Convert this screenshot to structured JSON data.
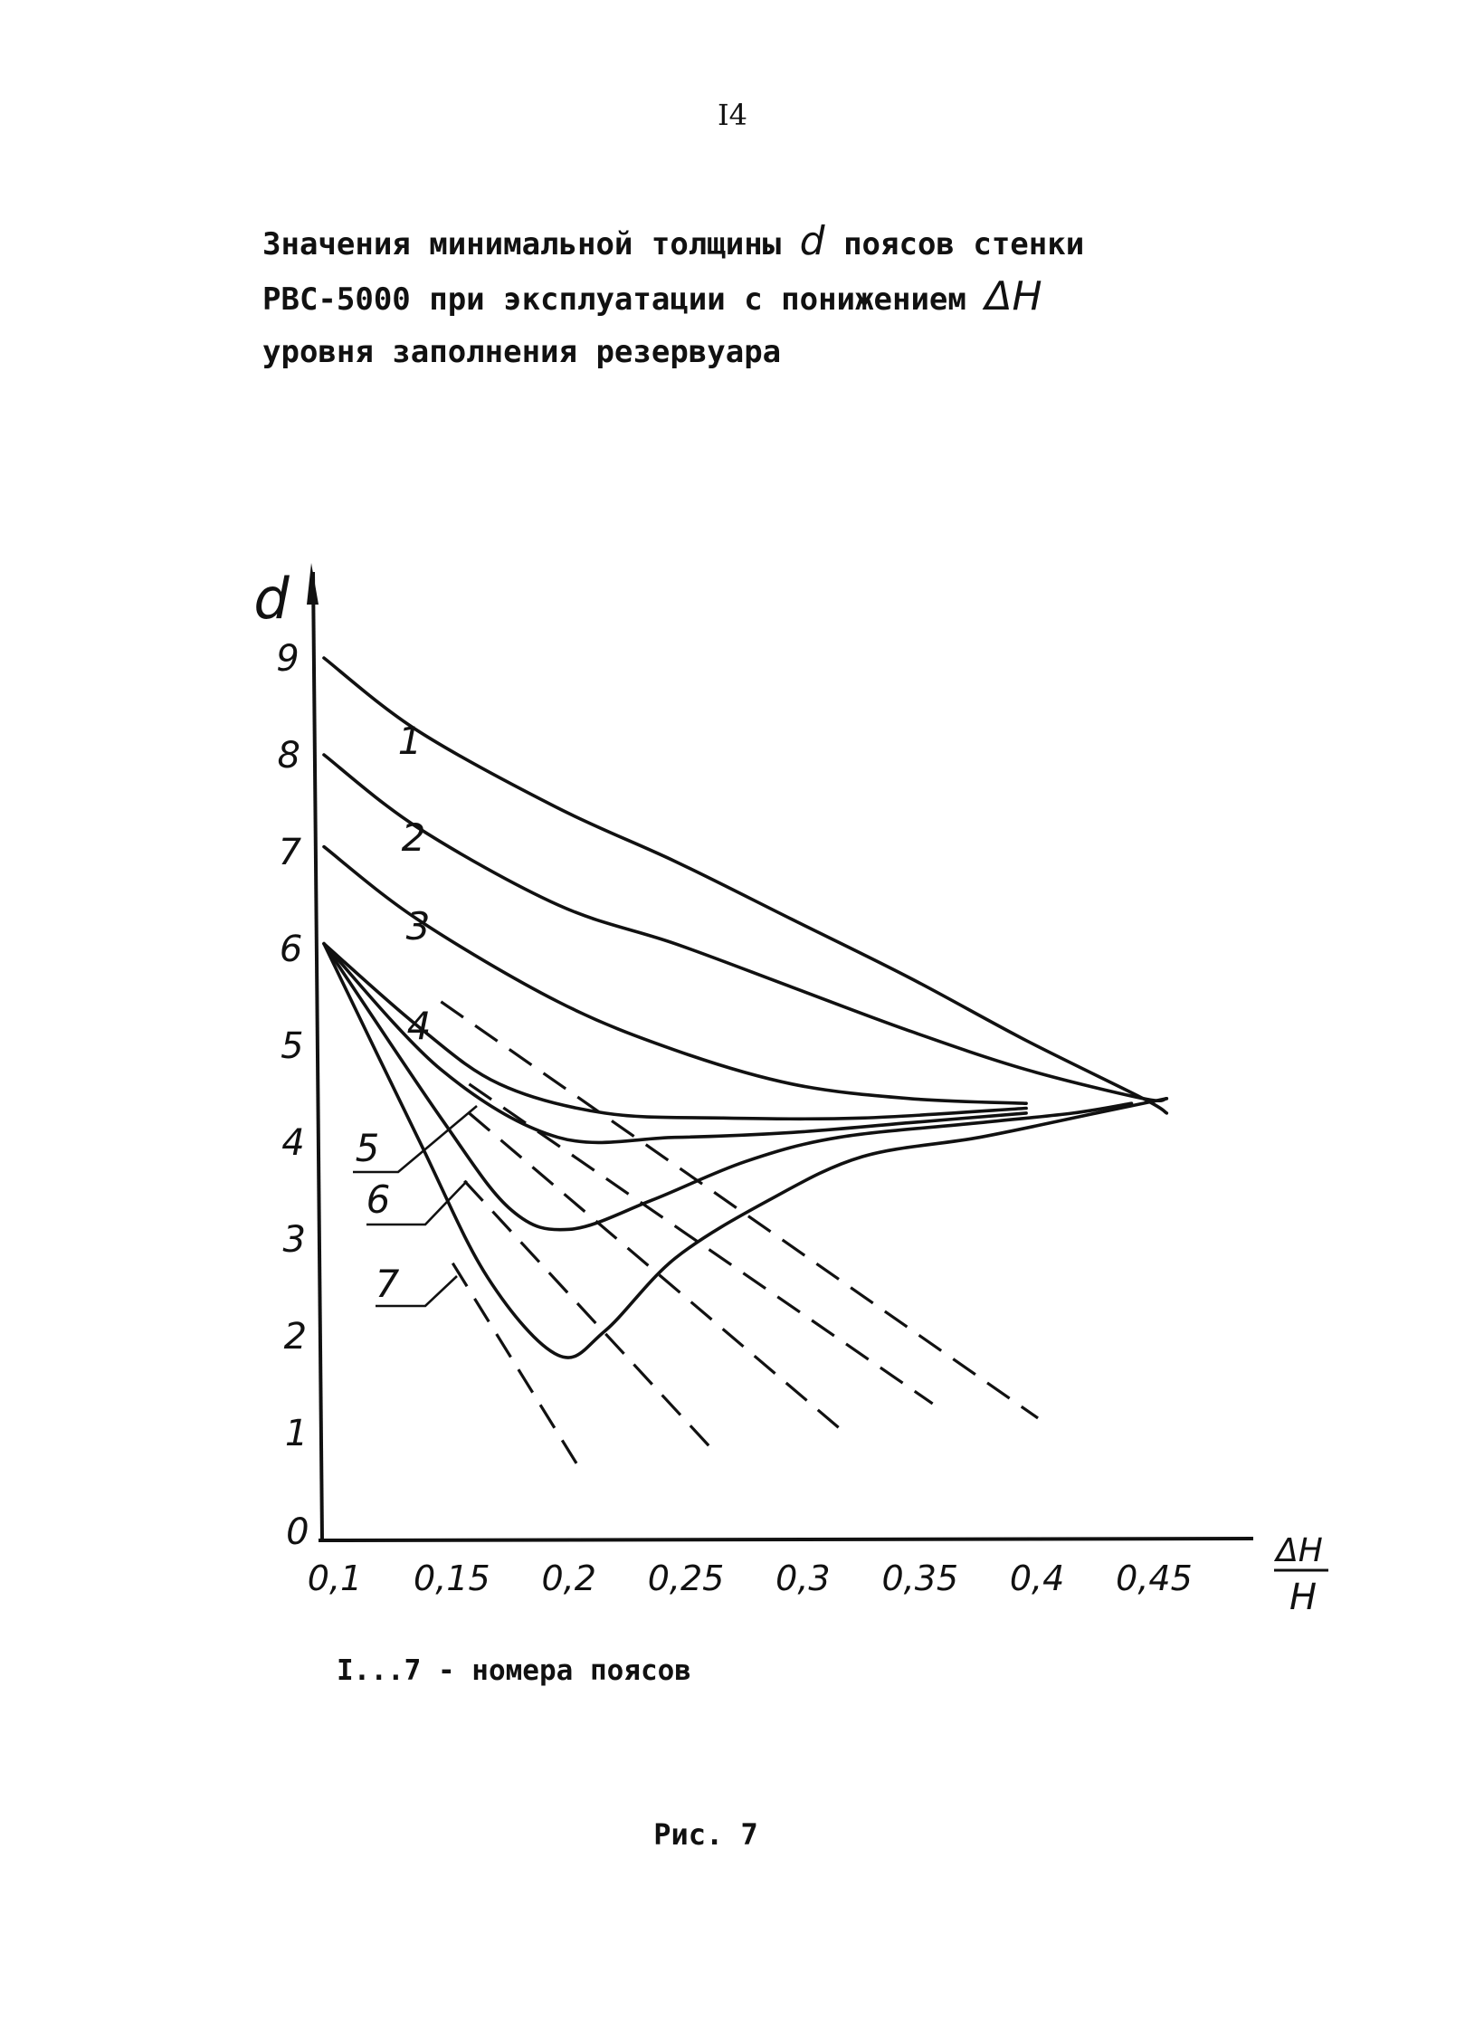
{
  "page_number": "I4",
  "caption": {
    "line1_a": "Значения минимальной толщины",
    "line1_sym": "d",
    "line1_b": "поясов стенки",
    "line2_a": "РВС-5000 при эксплуатации с понижением",
    "line2_sym": "ΔH",
    "line3": "уровня заполнения резервуара"
  },
  "chart_data": {
    "type": "line",
    "title": "",
    "ylabel": "d",
    "xlabel": "ΔH/H",
    "xlabel_num": "ΔH",
    "xlabel_den": "H",
    "xlim": [
      0.1,
      0.48
    ],
    "ylim": [
      0,
      10
    ],
    "x_ticks": [
      0.1,
      0.15,
      0.2,
      0.25,
      0.3,
      0.35,
      0.4,
      0.45
    ],
    "x_tick_labels": [
      "0,1",
      "0,15",
      "0,2",
      "0,25",
      "0,3",
      "0,35",
      "0,4",
      "0,45"
    ],
    "y_ticks": [
      0,
      1,
      2,
      3,
      4,
      5,
      6,
      7,
      8,
      9
    ],
    "y_tick_labels": [
      "0",
      "1",
      "2",
      "3",
      "4",
      "5",
      "6",
      "7",
      "8",
      "9"
    ],
    "grid": false,
    "series": [
      {
        "name": "1",
        "points": [
          [
            0.1,
            9.0
          ],
          [
            0.14,
            8.25
          ],
          [
            0.2,
            7.45
          ],
          [
            0.25,
            6.9
          ],
          [
            0.3,
            6.3
          ],
          [
            0.35,
            5.7
          ],
          [
            0.4,
            5.05
          ],
          [
            0.45,
            4.45
          ],
          [
            0.46,
            4.3
          ]
        ]
      },
      {
        "name": "2",
        "points": [
          [
            0.1,
            8.0
          ],
          [
            0.14,
            7.25
          ],
          [
            0.2,
            6.45
          ],
          [
            0.25,
            6.05
          ],
          [
            0.3,
            5.6
          ],
          [
            0.35,
            5.15
          ],
          [
            0.4,
            4.75
          ],
          [
            0.45,
            4.45
          ],
          [
            0.46,
            4.45
          ]
        ]
      },
      {
        "name": "3",
        "points": [
          [
            0.1,
            7.05
          ],
          [
            0.14,
            6.3
          ],
          [
            0.2,
            5.45
          ],
          [
            0.25,
            4.95
          ],
          [
            0.3,
            4.6
          ],
          [
            0.35,
            4.45
          ],
          [
            0.4,
            4.4
          ]
        ]
      },
      {
        "name": "4",
        "points": [
          [
            0.1,
            6.05
          ],
          [
            0.14,
            5.2
          ],
          [
            0.175,
            4.6
          ],
          [
            0.22,
            4.3
          ],
          [
            0.27,
            4.25
          ],
          [
            0.33,
            4.25
          ],
          [
            0.4,
            4.35
          ]
        ]
      },
      {
        "name": "5",
        "points": [
          [
            0.1,
            6.05
          ],
          [
            0.15,
            4.75
          ],
          [
            0.2,
            4.05
          ],
          [
            0.25,
            4.05
          ],
          [
            0.3,
            4.1
          ],
          [
            0.35,
            4.2
          ],
          [
            0.4,
            4.3
          ]
        ]
      },
      {
        "name": "6",
        "points": [
          [
            0.1,
            6.05
          ],
          [
            0.15,
            4.25
          ],
          [
            0.18,
            3.3
          ],
          [
            0.205,
            3.1
          ],
          [
            0.24,
            3.4
          ],
          [
            0.28,
            3.8
          ],
          [
            0.32,
            4.05
          ],
          [
            0.38,
            4.2
          ],
          [
            0.42,
            4.3
          ],
          [
            0.445,
            4.4
          ]
        ]
      },
      {
        "name": "7",
        "points": [
          [
            0.1,
            6.05
          ],
          [
            0.14,
            4.05
          ],
          [
            0.17,
            2.6
          ],
          [
            0.2,
            1.8
          ],
          [
            0.22,
            2.05
          ],
          [
            0.25,
            2.8
          ],
          [
            0.29,
            3.4
          ],
          [
            0.33,
            3.85
          ],
          [
            0.38,
            4.05
          ],
          [
            0.43,
            4.3
          ],
          [
            0.46,
            4.45
          ]
        ]
      }
    ],
    "dashed_extensions": [
      {
        "points": [
          [
            0.15,
            5.45
          ],
          [
            0.405,
            1.15
          ]
        ]
      },
      {
        "points": [
          [
            0.162,
            4.6
          ],
          [
            0.36,
            1.3
          ]
        ]
      },
      {
        "points": [
          [
            0.162,
            4.3
          ],
          [
            0.32,
            1.05
          ]
        ]
      },
      {
        "points": [
          [
            0.16,
            3.6
          ],
          [
            0.265,
            0.85
          ]
        ]
      },
      {
        "points": [
          [
            0.155,
            2.75
          ],
          [
            0.21,
            0.6
          ]
        ]
      }
    ],
    "curve_labels": [
      {
        "series": "1",
        "text": "1"
      },
      {
        "series": "2",
        "text": "2"
      },
      {
        "series": "3",
        "text": "3"
      },
      {
        "series": "4",
        "text": "4"
      },
      {
        "series": "5",
        "text": "5"
      },
      {
        "series": "6",
        "text": "6"
      },
      {
        "series": "7",
        "text": "7"
      }
    ]
  },
  "legend_note": "I...7 - номера поясов",
  "figure_label": "Рис. 7"
}
